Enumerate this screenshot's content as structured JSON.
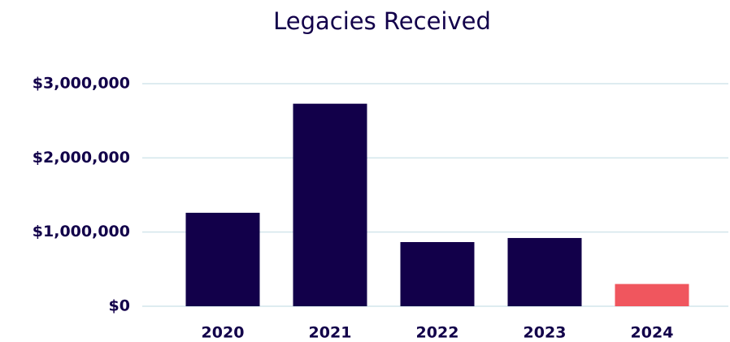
{
  "chart_data": {
    "type": "bar",
    "title": "Legacies Received",
    "categories": [
      "2020",
      "2021",
      "2022",
      "2023",
      "2024"
    ],
    "values": [
      1260000,
      2730000,
      865000,
      920000,
      300000
    ],
    "colors": [
      "#12004a",
      "#12004a",
      "#12004a",
      "#12004a",
      "#f0565e"
    ],
    "ylim": [
      0,
      3000000
    ],
    "yticks": [
      {
        "value": 0,
        "label": "$0"
      },
      {
        "value": 1000000,
        "label": "$1,000,000"
      },
      {
        "value": 2000000,
        "label": "$2,000,000"
      },
      {
        "value": 3000000,
        "label": "$3,000,000"
      }
    ],
    "grid": true
  }
}
